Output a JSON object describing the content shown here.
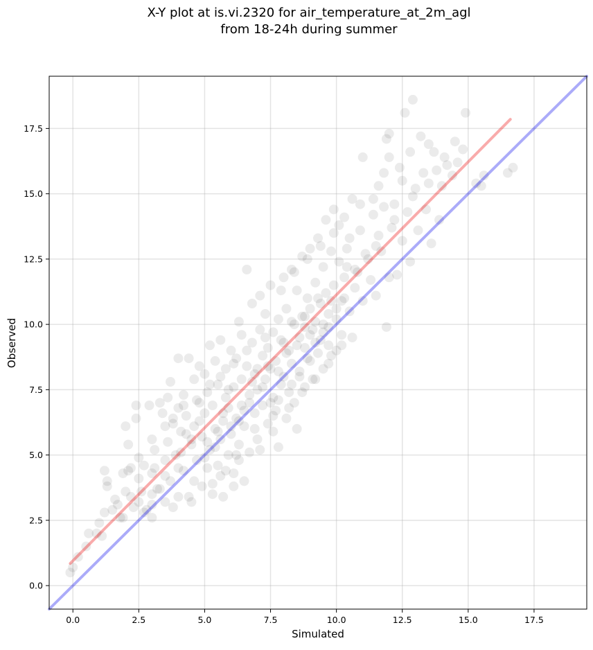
{
  "chart_data": {
    "type": "scatter",
    "title": "X-Y plot at is.vi.2320 for air_temperature_at_2m_agl",
    "subtitle": "from 18-24h during summer",
    "xlabel": "Simulated",
    "ylabel": "Observed",
    "xlim": [
      -0.9,
      19.5
    ],
    "ylim": [
      -0.9,
      19.5
    ],
    "xticks": [
      0.0,
      2.5,
      5.0,
      7.5,
      10.0,
      12.5,
      15.0,
      17.5
    ],
    "yticks": [
      0.0,
      2.5,
      5.0,
      7.5,
      10.0,
      12.5,
      15.0,
      17.5
    ],
    "xtick_labels": [
      "0.0",
      "2.5",
      "5.0",
      "7.5",
      "10.0",
      "12.5",
      "15.0",
      "17.5"
    ],
    "ytick_labels": [
      "0.0",
      "2.5",
      "5.0",
      "7.5",
      "10.0",
      "12.5",
      "15.0",
      "17.5"
    ],
    "grid": true,
    "point_color": "#000000",
    "point_opacity": 0.08,
    "reference_lines": [
      {
        "kind": "identity",
        "color": "#0000ee",
        "opacity": 0.33,
        "x": [
          -0.9,
          19.5
        ],
        "y": [
          -0.9,
          19.5
        ]
      },
      {
        "kind": "fit",
        "color": "#ee0000",
        "opacity": 0.33,
        "x": [
          -0.1,
          16.6
        ],
        "y": [
          0.85,
          17.85
        ]
      }
    ],
    "points": [
      [
        -0.1,
        0.5
      ],
      [
        0.0,
        0.7
      ],
      [
        0.2,
        1.1
      ],
      [
        0.5,
        1.5
      ],
      [
        0.6,
        2.0
      ],
      [
        0.9,
        2.0
      ],
      [
        1.0,
        2.4
      ],
      [
        1.1,
        1.9
      ],
      [
        1.2,
        2.8
      ],
      [
        1.2,
        4.4
      ],
      [
        1.3,
        4.0
      ],
      [
        1.3,
        3.8
      ],
      [
        1.5,
        2.9
      ],
      [
        1.6,
        3.3
      ],
      [
        1.7,
        3.1
      ],
      [
        1.9,
        2.6
      ],
      [
        1.9,
        4.3
      ],
      [
        2.0,
        3.6
      ],
      [
        2.0,
        6.1
      ],
      [
        2.1,
        5.4
      ],
      [
        2.1,
        4.4
      ],
      [
        2.2,
        3.4
      ],
      [
        2.3,
        3.0
      ],
      [
        2.4,
        6.4
      ],
      [
        2.4,
        6.9
      ],
      [
        2.5,
        4.9
      ],
      [
        2.5,
        4.1
      ],
      [
        2.6,
        3.6
      ],
      [
        2.7,
        4.6
      ],
      [
        2.8,
        2.9
      ],
      [
        2.9,
        6.9
      ],
      [
        3.0,
        2.6
      ],
      [
        3.0,
        3.1
      ],
      [
        3.0,
        5.6
      ],
      [
        3.1,
        5.2
      ],
      [
        3.1,
        4.5
      ],
      [
        3.3,
        3.7
      ],
      [
        3.3,
        7.0
      ],
      [
        3.4,
        6.6
      ],
      [
        3.5,
        3.2
      ],
      [
        3.5,
        4.8
      ],
      [
        3.6,
        5.5
      ],
      [
        3.6,
        7.2
      ],
      [
        3.7,
        4.0
      ],
      [
        3.7,
        7.8
      ],
      [
        3.8,
        6.2
      ],
      [
        3.8,
        3.0
      ],
      [
        3.9,
        5.0
      ],
      [
        4.0,
        6.8
      ],
      [
        4.0,
        8.7
      ],
      [
        4.0,
        3.4
      ],
      [
        4.1,
        5.9
      ],
      [
        4.2,
        4.4
      ],
      [
        4.2,
        7.3
      ],
      [
        4.3,
        6.5
      ],
      [
        4.4,
        8.7
      ],
      [
        4.5,
        5.4
      ],
      [
        4.5,
        3.2
      ],
      [
        4.6,
        7.9
      ],
      [
        4.6,
        6.1
      ],
      [
        4.7,
        4.8
      ],
      [
        4.8,
        7.0
      ],
      [
        4.8,
        8.4
      ],
      [
        4.9,
        3.8
      ],
      [
        4.9,
        5.7
      ],
      [
        5.0,
        6.6
      ],
      [
        5.0,
        8.1
      ],
      [
        5.1,
        4.5
      ],
      [
        5.1,
        7.4
      ],
      [
        5.2,
        9.2
      ],
      [
        5.2,
        5.2
      ],
      [
        5.3,
        6.9
      ],
      [
        5.3,
        3.9
      ],
      [
        5.4,
        8.6
      ],
      [
        5.4,
        6.0
      ],
      [
        5.5,
        7.7
      ],
      [
        5.5,
        4.6
      ],
      [
        5.6,
        5.6
      ],
      [
        5.6,
        9.4
      ],
      [
        5.7,
        6.3
      ],
      [
        5.7,
        3.4
      ],
      [
        5.8,
        7.2
      ],
      [
        5.8,
        8.3
      ],
      [
        5.9,
        5.0
      ],
      [
        5.9,
        6.8
      ],
      [
        6.0,
        9.0
      ],
      [
        6.0,
        5.8
      ],
      [
        6.1,
        7.6
      ],
      [
        6.1,
        4.3
      ],
      [
        6.2,
        8.7
      ],
      [
        6.2,
        6.4
      ],
      [
        6.3,
        10.1
      ],
      [
        6.3,
        5.4
      ],
      [
        6.4,
        7.9
      ],
      [
        6.4,
        9.6
      ],
      [
        6.5,
        6.1
      ],
      [
        6.5,
        4.0
      ],
      [
        6.6,
        8.4
      ],
      [
        6.6,
        12.1
      ],
      [
        6.7,
        7.0
      ],
      [
        6.7,
        5.1
      ],
      [
        6.8,
        9.3
      ],
      [
        6.8,
        10.8
      ],
      [
        6.9,
        6.6
      ],
      [
        6.9,
        8.1
      ],
      [
        7.0,
        7.5
      ],
      [
        7.0,
        5.6
      ],
      [
        7.1,
        9.8
      ],
      [
        7.1,
        11.1
      ],
      [
        7.2,
        6.9
      ],
      [
        7.2,
        8.8
      ],
      [
        7.3,
        7.9
      ],
      [
        7.3,
        10.4
      ],
      [
        7.4,
        6.2
      ],
      [
        7.4,
        9.1
      ],
      [
        7.5,
        8.3
      ],
      [
        7.5,
        11.5
      ],
      [
        7.6,
        7.2
      ],
      [
        7.6,
        9.7
      ],
      [
        7.7,
        6.7
      ],
      [
        7.7,
        8.6
      ],
      [
        7.8,
        10.2
      ],
      [
        7.8,
        5.3
      ],
      [
        7.9,
        7.7
      ],
      [
        7.9,
        9.4
      ],
      [
        8.0,
        11.8
      ],
      [
        8.0,
        8.0
      ],
      [
        8.1,
        6.4
      ],
      [
        8.1,
        10.6
      ],
      [
        8.2,
        7.4
      ],
      [
        8.2,
        9.0
      ],
      [
        8.3,
        12.1
      ],
      [
        8.3,
        8.5
      ],
      [
        8.4,
        7.0
      ],
      [
        8.4,
        10.0
      ],
      [
        8.5,
        11.3
      ],
      [
        8.5,
        6.0
      ],
      [
        8.6,
        9.5
      ],
      [
        8.6,
        8.2
      ],
      [
        8.7,
        12.6
      ],
      [
        8.7,
        10.3
      ],
      [
        8.8,
        7.6
      ],
      [
        8.8,
        9.1
      ],
      [
        8.9,
        11.0
      ],
      [
        8.9,
        8.7
      ],
      [
        9.0,
        10.6
      ],
      [
        9.0,
        12.9
      ],
      [
        9.1,
        9.8
      ],
      [
        9.1,
        7.9
      ],
      [
        9.2,
        11.6
      ],
      [
        9.2,
        10.1
      ],
      [
        9.3,
        8.9
      ],
      [
        9.3,
        13.3
      ],
      [
        9.4,
        10.8
      ],
      [
        9.4,
        9.4
      ],
      [
        9.5,
        12.2
      ],
      [
        9.5,
        8.3
      ],
      [
        9.6,
        11.2
      ],
      [
        9.6,
        14.0
      ],
      [
        9.7,
        9.9
      ],
      [
        9.7,
        10.4
      ],
      [
        9.8,
        12.8
      ],
      [
        9.8,
        8.8
      ],
      [
        9.9,
        11.5
      ],
      [
        9.9,
        14.4
      ],
      [
        10.0,
        10.2
      ],
      [
        10.0,
        9.0
      ],
      [
        10.1,
        12.4
      ],
      [
        10.1,
        13.8
      ],
      [
        10.2,
        10.9
      ],
      [
        10.2,
        9.6
      ],
      [
        10.3,
        14.1
      ],
      [
        10.3,
        11.8
      ],
      [
        10.4,
        12.9
      ],
      [
        10.5,
        10.5
      ],
      [
        10.5,
        13.3
      ],
      [
        10.6,
        14.8
      ],
      [
        10.7,
        11.4
      ],
      [
        10.8,
        12.0
      ],
      [
        10.9,
        13.6
      ],
      [
        11.0,
        10.9
      ],
      [
        11.0,
        16.4
      ],
      [
        11.2,
        12.5
      ],
      [
        11.3,
        11.7
      ],
      [
        11.4,
        14.2
      ],
      [
        11.5,
        13.0
      ],
      [
        11.5,
        11.1
      ],
      [
        11.6,
        15.3
      ],
      [
        11.7,
        12.8
      ],
      [
        11.8,
        14.5
      ],
      [
        11.8,
        15.8
      ],
      [
        11.9,
        17.1
      ],
      [
        11.9,
        9.9
      ],
      [
        12.0,
        16.4
      ],
      [
        12.0,
        11.8
      ],
      [
        12.1,
        13.7
      ],
      [
        12.2,
        14.6
      ],
      [
        12.3,
        11.9
      ],
      [
        12.4,
        16.0
      ],
      [
        12.5,
        15.5
      ],
      [
        12.5,
        13.2
      ],
      [
        12.6,
        18.1
      ],
      [
        12.7,
        14.3
      ],
      [
        12.8,
        12.4
      ],
      [
        12.8,
        16.6
      ],
      [
        12.9,
        18.6
      ],
      [
        13.0,
        15.2
      ],
      [
        13.1,
        13.6
      ],
      [
        13.2,
        17.2
      ],
      [
        13.3,
        15.8
      ],
      [
        13.4,
        14.4
      ],
      [
        13.5,
        16.9
      ],
      [
        13.6,
        13.1
      ],
      [
        13.7,
        16.6
      ],
      [
        13.8,
        15.9
      ],
      [
        13.9,
        14.0
      ],
      [
        14.0,
        15.3
      ],
      [
        14.2,
        16.1
      ],
      [
        14.4,
        15.7
      ],
      [
        14.6,
        16.2
      ],
      [
        14.8,
        16.7
      ],
      [
        14.9,
        18.1
      ],
      [
        15.3,
        15.4
      ],
      [
        15.5,
        15.3
      ],
      [
        15.6,
        15.7
      ],
      [
        16.5,
        15.8
      ],
      [
        16.7,
        16.0
      ],
      [
        12.0,
        17.3
      ],
      [
        11.4,
        14.8
      ],
      [
        10.9,
        14.6
      ],
      [
        6.1,
        3.8
      ],
      [
        5.6,
        4.2
      ],
      [
        4.6,
        4.0
      ],
      [
        3.2,
        3.7
      ],
      [
        2.7,
        2.8
      ],
      [
        1.8,
        2.6
      ],
      [
        2.2,
        4.5
      ],
      [
        3.0,
        4.3
      ],
      [
        3.5,
        6.1
      ],
      [
        4.1,
        5.1
      ],
      [
        4.3,
        5.8
      ],
      [
        4.8,
        6.3
      ],
      [
        5.1,
        5.5
      ],
      [
        5.4,
        5.3
      ],
      [
        5.7,
        6.6
      ],
      [
        5.9,
        7.5
      ],
      [
        6.2,
        5.0
      ],
      [
        6.4,
        6.9
      ],
      [
        6.7,
        7.3
      ],
      [
        6.9,
        6.0
      ],
      [
        7.2,
        7.6
      ],
      [
        7.4,
        8.4
      ],
      [
        7.6,
        6.5
      ],
      [
        7.8,
        7.1
      ],
      [
        8.1,
        8.9
      ],
      [
        8.3,
        7.7
      ],
      [
        8.6,
        8.0
      ],
      [
        8.8,
        9.9
      ],
      [
        9.0,
        8.6
      ],
      [
        9.2,
        9.3
      ],
      [
        9.5,
        9.7
      ],
      [
        9.7,
        9.2
      ],
      [
        10.0,
        10.6
      ],
      [
        10.3,
        11.0
      ],
      [
        10.7,
        12.1
      ],
      [
        11.1,
        12.7
      ],
      [
        11.6,
        13.4
      ],
      [
        12.2,
        14.0
      ],
      [
        12.9,
        14.9
      ],
      [
        13.5,
        15.4
      ],
      [
        14.1,
        16.4
      ],
      [
        14.5,
        17.0
      ],
      [
        6.0,
        6.1
      ],
      [
        6.5,
        6.7
      ],
      [
        7.0,
        8.3
      ],
      [
        7.5,
        7.0
      ],
      [
        8.0,
        9.3
      ],
      [
        8.5,
        9.2
      ],
      [
        9.0,
        9.6
      ],
      [
        9.5,
        10.0
      ],
      [
        5.5,
        5.9
      ],
      [
        5.0,
        4.9
      ],
      [
        4.5,
        5.6
      ],
      [
        4.0,
        4.5
      ],
      [
        3.5,
        4.2
      ],
      [
        3.0,
        3.5
      ],
      [
        2.5,
        3.2
      ],
      [
        6.3,
        6.3
      ],
      [
        6.8,
        7.8
      ],
      [
        7.3,
        9.5
      ],
      [
        7.8,
        8.2
      ],
      [
        8.3,
        10.1
      ],
      [
        8.8,
        10.3
      ],
      [
        9.3,
        11.0
      ],
      [
        9.8,
        10.9
      ],
      [
        10.4,
        12.2
      ],
      [
        6.6,
        9.0
      ],
      [
        6.1,
        8.5
      ],
      [
        5.6,
        8.0
      ],
      [
        5.2,
        7.7
      ],
      [
        4.7,
        7.1
      ],
      [
        4.2,
        6.9
      ],
      [
        3.8,
        6.4
      ],
      [
        7.9,
        11.3
      ],
      [
        8.4,
        12.0
      ],
      [
        8.9,
        12.5
      ],
      [
        9.4,
        13.0
      ],
      [
        9.9,
        13.5
      ],
      [
        7.1,
        5.2
      ],
      [
        7.6,
        5.9
      ],
      [
        8.2,
        6.8
      ],
      [
        8.7,
        7.4
      ],
      [
        9.2,
        7.9
      ],
      [
        9.7,
        8.5
      ],
      [
        10.2,
        9.2
      ],
      [
        10.6,
        9.5
      ],
      [
        5.3,
        3.5
      ],
      [
        6.3,
        4.8
      ],
      [
        5.8,
        4.4
      ],
      [
        4.4,
        3.4
      ]
    ]
  }
}
